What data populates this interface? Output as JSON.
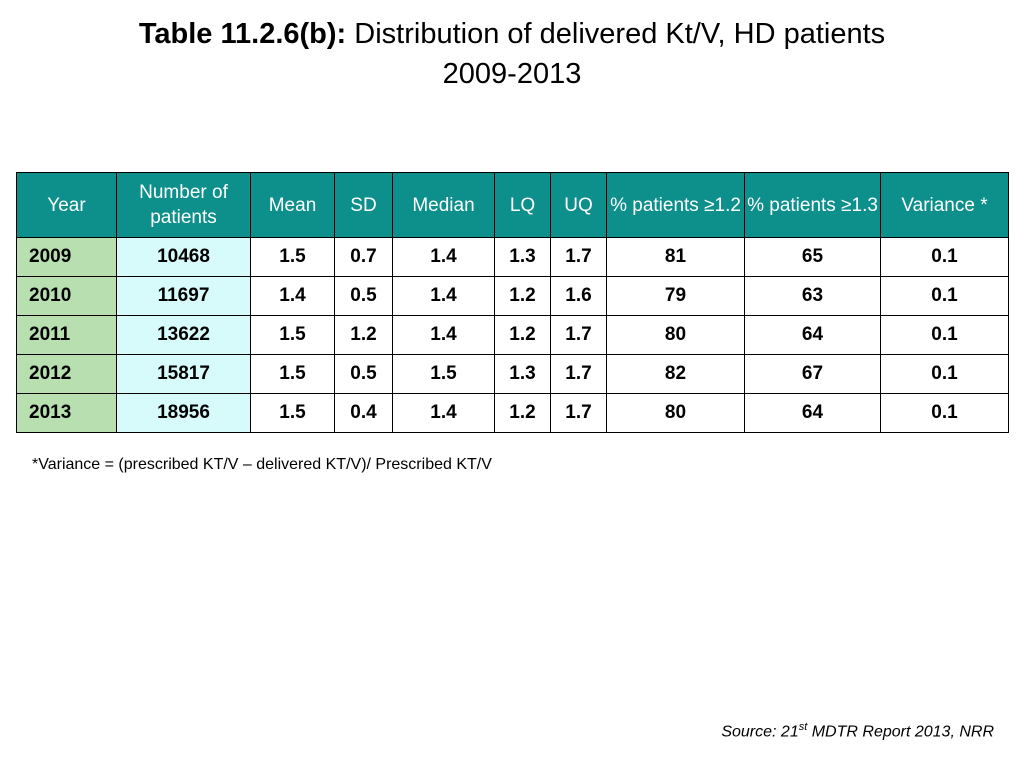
{
  "title": {
    "bold": "Table 11.2.6(b):",
    "text": "Distribution of delivered Kt/V, HD patients",
    "years": "2009-2013"
  },
  "table": {
    "headers": [
      "Year",
      "Number of patients",
      "Mean",
      "SD",
      "Median",
      "LQ",
      "UQ",
      "% patients ≥1.2",
      "% patients ≥1.3",
      "Variance *"
    ],
    "rows": [
      [
        "2009",
        "10468",
        "1.5",
        "0.7",
        "1.4",
        "1.3",
        "1.7",
        "81",
        "65",
        "0.1"
      ],
      [
        "2010",
        "11697",
        "1.4",
        "0.5",
        "1.4",
        "1.2",
        "1.6",
        "79",
        "63",
        "0.1"
      ],
      [
        "2011",
        "13622",
        "1.5",
        "1.2",
        "1.4",
        "1.2",
        "1.7",
        "80",
        "64",
        "0.1"
      ],
      [
        "2012",
        "15817",
        "1.5",
        "0.5",
        "1.5",
        "1.3",
        "1.7",
        "82",
        "67",
        "0.1"
      ],
      [
        "2013",
        "18956",
        "1.5",
        "0.4",
        "1.4",
        "1.2",
        "1.7",
        "80",
        "64",
        "0.1"
      ]
    ]
  },
  "footnote": "*Variance = (prescribed KT/V – delivered KT/V)/ Prescribed KT/V",
  "source": {
    "prefix": "Source: 21",
    "sup": "st",
    "suffix": " MDTR Report 2013, NRR"
  },
  "colors": {
    "header_bg": "#0d8f8c",
    "year_col_bg": "#b8dfb0",
    "count_col_bg": "#d6fbfa"
  }
}
